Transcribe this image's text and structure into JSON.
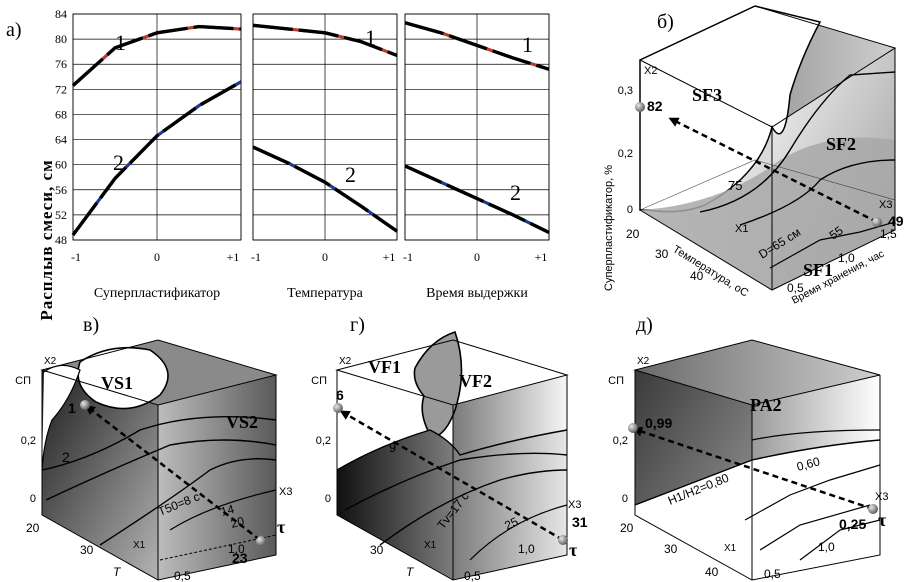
{
  "panel_a": {
    "letter": "а)",
    "ylabel": "Расплыв смеси, см",
    "yticks": [
      "84",
      "80",
      "76",
      "72",
      "68",
      "64",
      "60",
      "56",
      "52",
      "48"
    ],
    "xticks": [
      "-1",
      "0",
      "+1"
    ],
    "curve_labels": [
      "1",
      "2"
    ],
    "subplots": [
      {
        "title": "Суперпластификатор",
        "series": [
          {
            "name": "1",
            "values": [
              72.6,
              78.6,
              81.0,
              82.0,
              81.6
            ]
          },
          {
            "name": "2",
            "values": [
              48.8,
              57.8,
              64.6,
              69.4,
              73.2
            ]
          }
        ]
      },
      {
        "title": "Температура",
        "series": [
          {
            "name": "1",
            "values": [
              82.2,
              81.6,
              81.0,
              79.6,
              77.4
            ]
          },
          {
            "name": "2",
            "values": [
              62.8,
              60.2,
              57.2,
              53.4,
              49.4
            ]
          }
        ]
      },
      {
        "title": "Время выдержки",
        "series": [
          {
            "name": "1",
            "values": [
              82.6,
              81.0,
              79.0,
              77.0,
              75.2
            ]
          },
          {
            "name": "2",
            "values": [
              59.8,
              57.2,
              54.6,
              52.0,
              49.2
            ]
          }
        ]
      }
    ]
  },
  "panel_b": {
    "letter": "б)",
    "regions": [
      "SF3",
      "SF2",
      "SF1"
    ],
    "isolines": [
      "75",
      "D=65 см",
      "55"
    ],
    "point_start": "49",
    "point_end": "82",
    "zticks": [
      "0,3",
      "0,2",
      "0,1",
      "0"
    ],
    "axis_z_name": "X2",
    "axis_x1_name": "X1",
    "axis_x3_name": "X3",
    "ylabel": "Суперпластификатор, %",
    "t_ticks": [
      "20",
      "30",
      "40"
    ],
    "t_label": "Температура, оС",
    "h_ticks": [
      "1,5",
      "1,0",
      "0,5"
    ],
    "h_label": "Время хранения, час"
  },
  "panel_v": {
    "letter": "в)",
    "regions": [
      "VS1",
      "VS2"
    ],
    "isolines": [
      "2",
      "T50=8 с",
      "14",
      "20"
    ],
    "point_start": "23",
    "point_end": "1",
    "zticks": [
      "СП",
      "0,2",
      "0"
    ],
    "axis_z_name": "X2",
    "axis_x1_name": "X1",
    "axis_x3_name": "X3",
    "t_ticks": [
      "20",
      "30"
    ],
    "t_label": "T",
    "h_ticks": [
      "1,0",
      "0,5"
    ],
    "h_label": "τ"
  },
  "panel_g": {
    "letter": "г)",
    "regions": [
      "VF1",
      "VF2"
    ],
    "isolines": [
      "9",
      "Tv=17 с",
      "25"
    ],
    "point_start": "31",
    "point_end": "6",
    "zticks": [
      "СП",
      "0,2",
      "0"
    ],
    "axis_z_name": "X2",
    "axis_x1_name": "X1",
    "axis_x3_name": "X3",
    "t_ticks": [
      "30"
    ],
    "t_label": "T",
    "h_ticks": [
      "1,0",
      "0,5"
    ],
    "h_label": "τ"
  },
  "panel_d": {
    "letter": "д)",
    "regions": [
      "PA2"
    ],
    "isolines": [
      "H1/H2=0,80",
      "0,60"
    ],
    "point_start": "0,25",
    "point_end": "0,99",
    "zticks": [
      "СП",
      "0,2",
      "0"
    ],
    "axis_z_name": "X2",
    "axis_x1_name": "X1",
    "axis_x3_name": "X3",
    "t_ticks": [
      "20",
      "30",
      "40"
    ],
    "h_ticks": [
      "1,0",
      "0,5"
    ],
    "h_label": "τ"
  }
}
